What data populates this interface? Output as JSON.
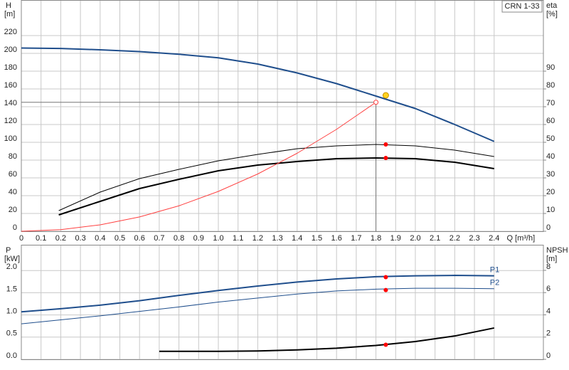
{
  "chart_data": [
    {
      "type": "line",
      "title": "CRN 1-33",
      "xlabel": "Q [m³/h]",
      "ylabel": "H",
      "yunit": "[m]",
      "y2label": "eta",
      "y2unit": "[%]",
      "xlim": [
        0,
        2.65
      ],
      "xticks": [
        0,
        0.1,
        0.2,
        0.3,
        0.4,
        0.5,
        0.6,
        0.7,
        0.8,
        0.9,
        {
          "value": 1,
          "label": "1.0"
        },
        1.1,
        1.2,
        1.3,
        1.4,
        1.5,
        1.6,
        1.7,
        1.8,
        1.9,
        {
          "value": 2,
          "label": "2.0"
        },
        2.1,
        2.2,
        2.3,
        2.4
      ],
      "xtick_labels": true,
      "ylim": [
        0,
        260
      ],
      "yticks": [
        0,
        20,
        40,
        60,
        80,
        100,
        120,
        140,
        160,
        180,
        200,
        220
      ],
      "y2lim": [
        0,
        130
      ],
      "y2ticks": [
        0,
        10,
        20,
        30,
        40,
        50,
        60,
        70,
        80,
        90
      ],
      "grid": true,
      "duty_x": 1.85,
      "reference_point": {
        "x": 1.8,
        "y": 145,
        "color": "#777777"
      },
      "series": [
        {
          "color": "#1f4e8c",
          "line_width": 2,
          "x": [
            0,
            0.2,
            0.4,
            0.6,
            0.8,
            1.0,
            1.2,
            1.4,
            1.6,
            1.8,
            2.0,
            2.2,
            2.4
          ],
          "values": [
            206,
            205.5,
            204,
            202,
            199,
            195,
            188,
            178,
            166,
            152,
            138,
            120,
            101
          ],
          "duty": 152.8,
          "marker_color": "#ffd21f"
        },
        {
          "color": "#000000",
          "line_width": 1,
          "axis": "y2",
          "x": [
            0.19,
            0.4,
            0.6,
            0.8,
            1.0,
            1.2,
            1.4,
            1.6,
            1.8,
            2.0,
            2.2,
            2.4
          ],
          "values": [
            11.6,
            22,
            29.6,
            34.8,
            39.6,
            43.2,
            46.4,
            48,
            48.8,
            48,
            45.6,
            42
          ],
          "duty": 48.8,
          "marker_color": "#ff0000"
        },
        {
          "color": "#000000",
          "line_width": 2,
          "axis": "y2",
          "x": [
            0.19,
            0.4,
            0.6,
            0.8,
            1.0,
            1.2,
            1.4,
            1.6,
            1.8,
            2.0,
            2.2,
            2.4
          ],
          "values": [
            9.2,
            16.8,
            24,
            29.2,
            34,
            37.2,
            39.2,
            40.8,
            41.2,
            40.8,
            38.8,
            35.2
          ],
          "duty": 41.2,
          "marker_color": "#ff0000"
        },
        {
          "color": "#ff4040",
          "line_width": 1,
          "x": [
            0,
            0.2,
            0.4,
            0.6,
            0.8,
            1.0,
            1.2,
            1.4,
            1.6,
            1.8
          ],
          "values": [
            0,
            1.8,
            7.2,
            16.1,
            28.6,
            44.8,
            64.4,
            87.7,
            114.6,
            145
          ]
        }
      ]
    },
    {
      "type": "line",
      "ylabel": "P",
      "yunit": "[kW]",
      "y2label": "NPSH",
      "y2unit": "[m]",
      "xlim": [
        0,
        2.65
      ],
      "xticks": [
        0,
        0.1,
        0.2,
        0.3,
        0.4,
        0.5,
        0.6,
        0.7,
        0.8,
        0.9,
        1,
        1.1,
        1.2,
        1.3,
        1.4,
        1.5,
        1.6,
        1.7,
        1.8,
        1.9,
        2,
        2.1,
        2.2,
        2.3,
        2.4
      ],
      "xtick_labels": false,
      "ylim": [
        0,
        2.58
      ],
      "yticks": [
        {
          "value": 0,
          "label": "0.0"
        },
        0.5,
        {
          "value": 1,
          "label": "1.0"
        },
        1.5,
        {
          "value": 2,
          "label": "2.0"
        }
      ],
      "y2lim": [
        0,
        10.3
      ],
      "y2ticks": [
        0,
        2,
        4,
        6,
        8
      ],
      "grid": true,
      "duty_x": 1.85,
      "series": [
        {
          "name": "P1",
          "color": "#1f4e8c",
          "line_width": 2,
          "x": [
            0,
            0.2,
            0.4,
            0.6,
            0.8,
            1.0,
            1.2,
            1.4,
            1.6,
            1.8,
            2.0,
            2.2,
            2.4
          ],
          "values": [
            1.07,
            1.14,
            1.22,
            1.32,
            1.44,
            1.55,
            1.65,
            1.74,
            1.81,
            1.86,
            1.88,
            1.89,
            1.88
          ],
          "duty": 1.85,
          "marker_color": "#ff0000"
        },
        {
          "name": "P2",
          "color": "#1f4e8c",
          "line_width": 1,
          "x": [
            0,
            0.2,
            0.4,
            0.6,
            0.8,
            1.0,
            1.2,
            1.4,
            1.6,
            1.8,
            2.0,
            2.2,
            2.4
          ],
          "values": [
            0.8,
            0.89,
            0.98,
            1.08,
            1.18,
            1.29,
            1.38,
            1.47,
            1.54,
            1.58,
            1.6,
            1.6,
            1.59
          ],
          "duty": 1.56,
          "marker_color": "#ff0000"
        },
        {
          "color": "#000000",
          "line_width": 2,
          "axis": "y2",
          "x": [
            0.7,
            1.0,
            1.2,
            1.4,
            1.6,
            1.8,
            2.0,
            2.2,
            2.4
          ],
          "values": [
            0.72,
            0.72,
            0.75,
            0.85,
            1.0,
            1.25,
            1.6,
            2.1,
            2.82
          ],
          "duty": 1.31,
          "marker_color": "#ff0000"
        }
      ]
    }
  ]
}
